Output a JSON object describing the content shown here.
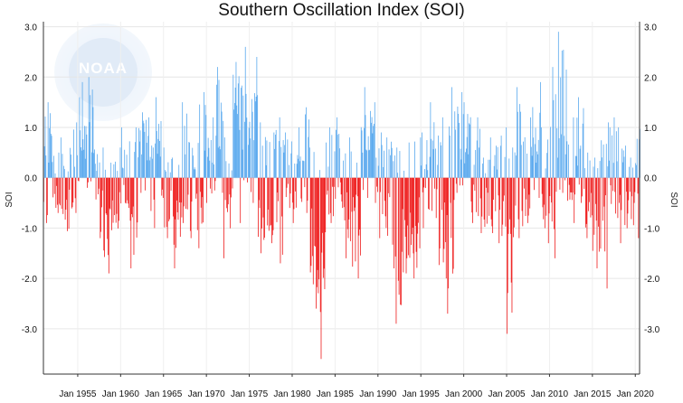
{
  "chart_data": {
    "type": "bar",
    "title": "Southern Oscillation Index (SOI)",
    "ylabel_left": "SOI",
    "ylabel_right": "SOI",
    "ylim": [
      -3.9,
      3.1
    ],
    "yticks": [
      3.0,
      2.0,
      1.0,
      0.0,
      -1.0,
      -2.0,
      -3.0
    ],
    "ytick_labels": [
      "3.0",
      "2.0",
      "1.0",
      "0.0",
      "-1.0",
      "-2.0",
      "-3.0"
    ],
    "xlim": [
      1951.0,
      2020.5
    ],
    "xticks": [
      1955,
      1960,
      1965,
      1970,
      1975,
      1980,
      1985,
      1990,
      1995,
      2000,
      2005,
      2010,
      2015,
      2020
    ],
    "xtick_labels": [
      "Jan 1955",
      "Jan 1960",
      "Jan 1965",
      "Jan 1970",
      "Jan 1975",
      "Jan 1980",
      "Jan 1985",
      "Jan 1990",
      "Jan 1995",
      "Jan 2000",
      "Jan 2005",
      "Jan 2010",
      "Jan 2015",
      "Jan 2020"
    ],
    "grid": true,
    "colors": {
      "positive": "#5aa9ee",
      "negative": "#ee1c1c"
    },
    "series_note_values": "yearly approximate extremes [year, max_positive, min_negative]",
    "yearly": [
      [
        1951,
        1.5,
        -0.9
      ],
      [
        1952,
        0.5,
        -0.7
      ],
      [
        1953,
        0.8,
        -1.4
      ],
      [
        1954,
        1.1,
        -0.7
      ],
      [
        1955,
        1.9,
        -0.2
      ],
      [
        1956,
        2.0,
        -0.2
      ],
      [
        1957,
        0.6,
        -1.2
      ],
      [
        1958,
        0.3,
        -1.9
      ],
      [
        1959,
        0.6,
        -1.3
      ],
      [
        1960,
        1.0,
        -0.6
      ],
      [
        1961,
        1.0,
        -1.8
      ],
      [
        1962,
        1.3,
        -0.3
      ],
      [
        1963,
        1.2,
        -1.0
      ],
      [
        1964,
        1.6,
        -0.4
      ],
      [
        1965,
        0.6,
        -1.2
      ],
      [
        1966,
        0.4,
        -1.8
      ],
      [
        1967,
        1.5,
        -0.9
      ],
      [
        1968,
        0.7,
        -1.2
      ],
      [
        1969,
        1.7,
        -1.4
      ],
      [
        1970,
        1.2,
        -0.5
      ],
      [
        1971,
        2.2,
        -0.3
      ],
      [
        1972,
        0.8,
        -1.6
      ],
      [
        1973,
        2.3,
        -0.9
      ],
      [
        1974,
        2.6,
        -0.3
      ],
      [
        1975,
        2.4,
        -0.5
      ],
      [
        1976,
        1.1,
        -1.5
      ],
      [
        1977,
        0.9,
        -1.3
      ],
      [
        1978,
        1.2,
        -1.7
      ],
      [
        1979,
        0.9,
        -0.6
      ],
      [
        1980,
        1.0,
        -0.9
      ],
      [
        1981,
        1.4,
        -0.7
      ],
      [
        1982,
        0.6,
        -2.6
      ],
      [
        1983,
        0.7,
        -3.6
      ],
      [
        1984,
        1.0,
        -0.9
      ],
      [
        1985,
        1.2,
        -0.6
      ],
      [
        1986,
        0.8,
        -1.6
      ],
      [
        1987,
        0.3,
        -2.0
      ],
      [
        1988,
        1.8,
        -0.4
      ],
      [
        1989,
        1.5,
        -0.5
      ],
      [
        1990,
        0.9,
        -1.2
      ],
      [
        1991,
        0.8,
        -1.8
      ],
      [
        1992,
        0.6,
        -2.9
      ],
      [
        1993,
        0.7,
        -1.9
      ],
      [
        1994,
        0.8,
        -2.0
      ],
      [
        1995,
        0.9,
        -1.0
      ],
      [
        1996,
        1.5,
        -0.8
      ],
      [
        1997,
        1.2,
        -2.0
      ],
      [
        1998,
        1.8,
        -2.7
      ],
      [
        1999,
        1.7,
        -0.3
      ],
      [
        2000,
        1.5,
        -0.8
      ],
      [
        2001,
        1.2,
        -0.9
      ],
      [
        2002,
        0.4,
        -1.1
      ],
      [
        2003,
        0.8,
        -1.1
      ],
      [
        2004,
        1.0,
        -1.3
      ],
      [
        2005,
        0.6,
        -3.1
      ],
      [
        2006,
        1.8,
        -1.2
      ],
      [
        2007,
        1.2,
        -0.9
      ],
      [
        2008,
        1.9,
        -0.4
      ],
      [
        2009,
        1.0,
        -1.3
      ],
      [
        2010,
        2.2,
        -1.6
      ],
      [
        2011,
        2.9,
        -0.3
      ],
      [
        2012,
        1.2,
        -0.9
      ],
      [
        2013,
        1.6,
        -0.5
      ],
      [
        2014,
        0.5,
        -1.2
      ],
      [
        2015,
        0.4,
        -1.8
      ],
      [
        2016,
        1.1,
        -2.2
      ],
      [
        2017,
        1.2,
        -0.8
      ],
      [
        2018,
        1.0,
        -1.3
      ],
      [
        2019,
        0.4,
        -1.4
      ],
      [
        2020,
        1.5,
        -1.2
      ]
    ]
  },
  "watermark": {
    "label": "NOAA",
    "icon": "noaa-logo"
  }
}
